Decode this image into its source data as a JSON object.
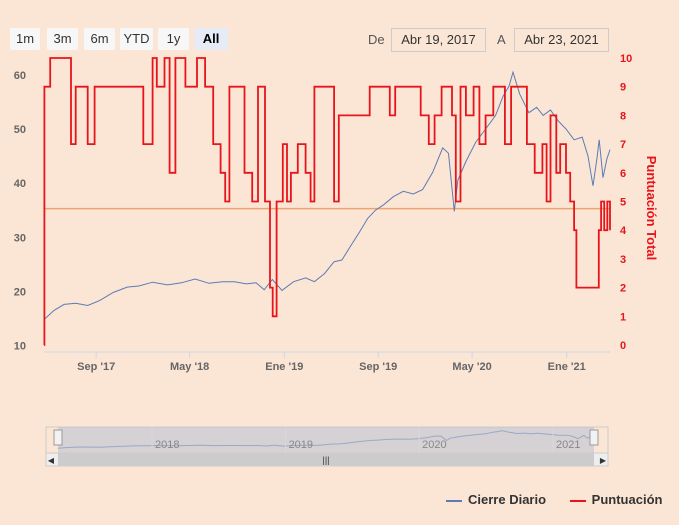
{
  "range_selector": {
    "buttons": [
      "1m",
      "3m",
      "6m",
      "YTD",
      "1y",
      "All"
    ],
    "active": "All",
    "from_label": "De",
    "from_value": "Abr 19, 2017",
    "to_label": "A",
    "to_value": "Abr 23, 2021"
  },
  "navigator": {
    "labels": [
      "2018",
      "2019",
      "2020",
      "2021"
    ],
    "handle_glyph": "|||"
  },
  "legend": {
    "series1": "Cierre Diario",
    "series2": "Puntuación"
  },
  "colors": {
    "price": "#5b7bb4",
    "score": "#e8141c",
    "plotline": "#f0a36e",
    "nav": "#9aa9c8"
  },
  "chart_data": {
    "type": "line",
    "x_tick_labels": [
      "Sep '17",
      "May '18",
      "Ene '19",
      "Sep '19",
      "May '20",
      "Ene '21"
    ],
    "x_tick_dates": [
      "2017-09-01",
      "2018-05-01",
      "2019-01-01",
      "2019-09-01",
      "2020-05-01",
      "2021-01-01"
    ],
    "x_range": [
      "2017-04-19",
      "2021-04-23"
    ],
    "y_left": {
      "range": [
        9,
        62
      ],
      "ticks": [
        10,
        20,
        30,
        40,
        50,
        60
      ]
    },
    "y_right": {
      "label": "Puntuación Total",
      "range": [
        0,
        10
      ],
      "ticks": [
        0,
        1,
        2,
        3,
        4,
        5,
        6,
        7,
        8,
        9,
        10
      ]
    },
    "plot_line": {
      "axis": "right",
      "value": 4.75
    },
    "series": [
      {
        "name": "Cierre Diario",
        "axis": "left",
        "points": [
          [
            "2017-04-19",
            14.8
          ],
          [
            "2017-05-15",
            16.5
          ],
          [
            "2017-06-10",
            17.6
          ],
          [
            "2017-07-10",
            17.8
          ],
          [
            "2017-08-10",
            17.4
          ],
          [
            "2017-09-10",
            18.3
          ],
          [
            "2017-10-15",
            19.8
          ],
          [
            "2017-11-20",
            20.8
          ],
          [
            "2017-12-20",
            21.0
          ],
          [
            "2018-01-25",
            21.7
          ],
          [
            "2018-03-05",
            21.2
          ],
          [
            "2018-04-10",
            21.6
          ],
          [
            "2018-05-15",
            22.3
          ],
          [
            "2018-06-20",
            21.5
          ],
          [
            "2018-07-25",
            21.8
          ],
          [
            "2018-08-25",
            21.8
          ],
          [
            "2018-09-25",
            21.4
          ],
          [
            "2018-10-20",
            21.6
          ],
          [
            "2018-11-10",
            20.3
          ],
          [
            "2018-12-01",
            22.2
          ],
          [
            "2018-12-26",
            20.2
          ],
          [
            "2019-01-25",
            21.8
          ],
          [
            "2019-02-25",
            22.5
          ],
          [
            "2019-03-20",
            21.8
          ],
          [
            "2019-04-15",
            23.3
          ],
          [
            "2019-05-10",
            25.5
          ],
          [
            "2019-05-30",
            25.8
          ],
          [
            "2019-06-20",
            28.2
          ],
          [
            "2019-07-15",
            31.0
          ],
          [
            "2019-08-05",
            33.5
          ],
          [
            "2019-08-25",
            35.0
          ],
          [
            "2019-09-15",
            36.0
          ],
          [
            "2019-10-10",
            37.5
          ],
          [
            "2019-11-05",
            38.5
          ],
          [
            "2019-12-01",
            38.0
          ],
          [
            "2019-12-25",
            38.8
          ],
          [
            "2020-01-20",
            42.0
          ],
          [
            "2020-02-15",
            46.5
          ],
          [
            "2020-03-01",
            45.5
          ],
          [
            "2020-03-16",
            34.8
          ],
          [
            "2020-03-25",
            40.5
          ],
          [
            "2020-04-15",
            44.0
          ],
          [
            "2020-05-10",
            47.5
          ],
          [
            "2020-06-05",
            50.0
          ],
          [
            "2020-07-01",
            52.5
          ],
          [
            "2020-07-20",
            56.0
          ],
          [
            "2020-08-05",
            58.0
          ],
          [
            "2020-08-15",
            60.5
          ],
          [
            "2020-09-01",
            56.5
          ],
          [
            "2020-09-25",
            53.0
          ],
          [
            "2020-10-15",
            54.0
          ],
          [
            "2020-11-01",
            52.5
          ],
          [
            "2020-11-20",
            53.5
          ],
          [
            "2020-12-10",
            51.5
          ],
          [
            "2020-12-30",
            50.0
          ],
          [
            "2021-01-20",
            48.0
          ],
          [
            "2021-02-10",
            48.5
          ],
          [
            "2021-02-25",
            45.0
          ],
          [
            "2021-03-10",
            39.5
          ],
          [
            "2021-03-20",
            44.5
          ],
          [
            "2021-03-26",
            48.0
          ],
          [
            "2021-04-05",
            41.0
          ],
          [
            "2021-04-15",
            44.5
          ],
          [
            "2021-04-23",
            46.2
          ]
        ]
      },
      {
        "name": "Puntuación",
        "axis": "right",
        "step": true,
        "points": [
          [
            "2017-04-19",
            0
          ],
          [
            "2017-04-20",
            9
          ],
          [
            "2017-05-05",
            10
          ],
          [
            "2017-06-28",
            7
          ],
          [
            "2017-07-10",
            9
          ],
          [
            "2017-08-10",
            7
          ],
          [
            "2017-08-28",
            9
          ],
          [
            "2018-01-01",
            7
          ],
          [
            "2018-01-25",
            10
          ],
          [
            "2018-02-05",
            9
          ],
          [
            "2018-02-25",
            10
          ],
          [
            "2018-03-10",
            6
          ],
          [
            "2018-03-25",
            10
          ],
          [
            "2018-04-20",
            9
          ],
          [
            "2018-05-20",
            10
          ],
          [
            "2018-06-10",
            9
          ],
          [
            "2018-07-01",
            7
          ],
          [
            "2018-07-20",
            6
          ],
          [
            "2018-08-01",
            5
          ],
          [
            "2018-08-12",
            9
          ],
          [
            "2018-09-20",
            6
          ],
          [
            "2018-10-10",
            5
          ],
          [
            "2018-10-25",
            9
          ],
          [
            "2018-11-12",
            5
          ],
          [
            "2018-11-25",
            2
          ],
          [
            "2018-12-02",
            1
          ],
          [
            "2018-12-12",
            5
          ],
          [
            "2018-12-28",
            7
          ],
          [
            "2019-01-08",
            5
          ],
          [
            "2019-01-18",
            6
          ],
          [
            "2019-02-05",
            7
          ],
          [
            "2019-02-25",
            6
          ],
          [
            "2019-03-10",
            5
          ],
          [
            "2019-03-20",
            9
          ],
          [
            "2019-05-10",
            5
          ],
          [
            "2019-05-22",
            8
          ],
          [
            "2019-08-10",
            9
          ],
          [
            "2019-09-10",
            9
          ],
          [
            "2019-10-01",
            8
          ],
          [
            "2019-10-15",
            9
          ],
          [
            "2019-12-20",
            8
          ],
          [
            "2020-01-10",
            7
          ],
          [
            "2020-01-25",
            8
          ],
          [
            "2020-02-12",
            9
          ],
          [
            "2020-03-10",
            8
          ],
          [
            "2020-03-20",
            5
          ],
          [
            "2020-04-01",
            9
          ],
          [
            "2020-04-15",
            8
          ],
          [
            "2020-05-05",
            9
          ],
          [
            "2020-05-20",
            7
          ],
          [
            "2020-06-05",
            8
          ],
          [
            "2020-06-25",
            9
          ],
          [
            "2020-07-25",
            7
          ],
          [
            "2020-08-10",
            9
          ],
          [
            "2020-09-20",
            7
          ],
          [
            "2020-10-10",
            6
          ],
          [
            "2020-10-30",
            7
          ],
          [
            "2020-11-10",
            5
          ],
          [
            "2020-11-20",
            8
          ],
          [
            "2020-12-05",
            6
          ],
          [
            "2020-12-15",
            7
          ],
          [
            "2020-12-30",
            6
          ],
          [
            "2021-01-10",
            5
          ],
          [
            "2021-01-20",
            4
          ],
          [
            "2021-01-26",
            2
          ],
          [
            "2021-03-25",
            4
          ],
          [
            "2021-03-31",
            5
          ],
          [
            "2021-04-08",
            4
          ],
          [
            "2021-04-16",
            5
          ],
          [
            "2021-04-23",
            4
          ]
        ]
      }
    ],
    "legend": "bottom-right"
  }
}
